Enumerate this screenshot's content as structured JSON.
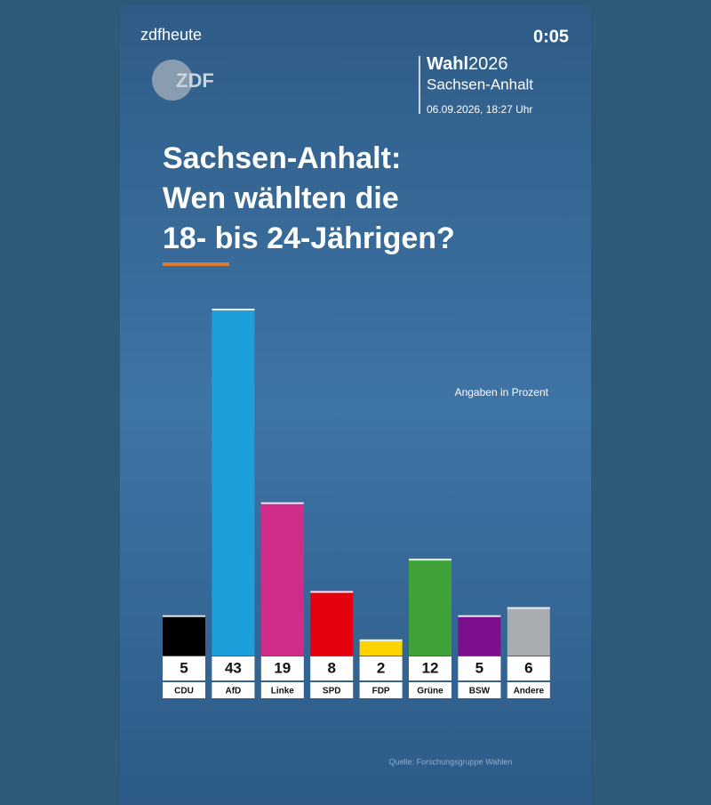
{
  "header": {
    "channel": "zdfheute",
    "timestamp": "0:05",
    "logo": "ZDF",
    "election_word": "Wahl",
    "election_year": "2026",
    "region": "Sachsen-Anhalt",
    "datetime": "06.09.2026, 18:27 Uhr"
  },
  "chart_data": {
    "type": "bar",
    "title": [
      "Sachsen-Anhalt:",
      "Wen wählten die",
      "18- bis 24-Jährigen?"
    ],
    "note": "Angaben in Prozent",
    "source": "Quelle: Forschungsgruppe Wahlen",
    "categories": [
      "CDU",
      "AfD",
      "Linke",
      "SPD",
      "FDP",
      "Grüne",
      "BSW",
      "Andere"
    ],
    "values": [
      5,
      43,
      19,
      8,
      2,
      12,
      5,
      6
    ],
    "colors": [
      "#000000",
      "#1ba0dc",
      "#d02d8b",
      "#e3000f",
      "#ffd500",
      "#3fa33a",
      "#7b0f8c",
      "#a9acb1"
    ]
  }
}
